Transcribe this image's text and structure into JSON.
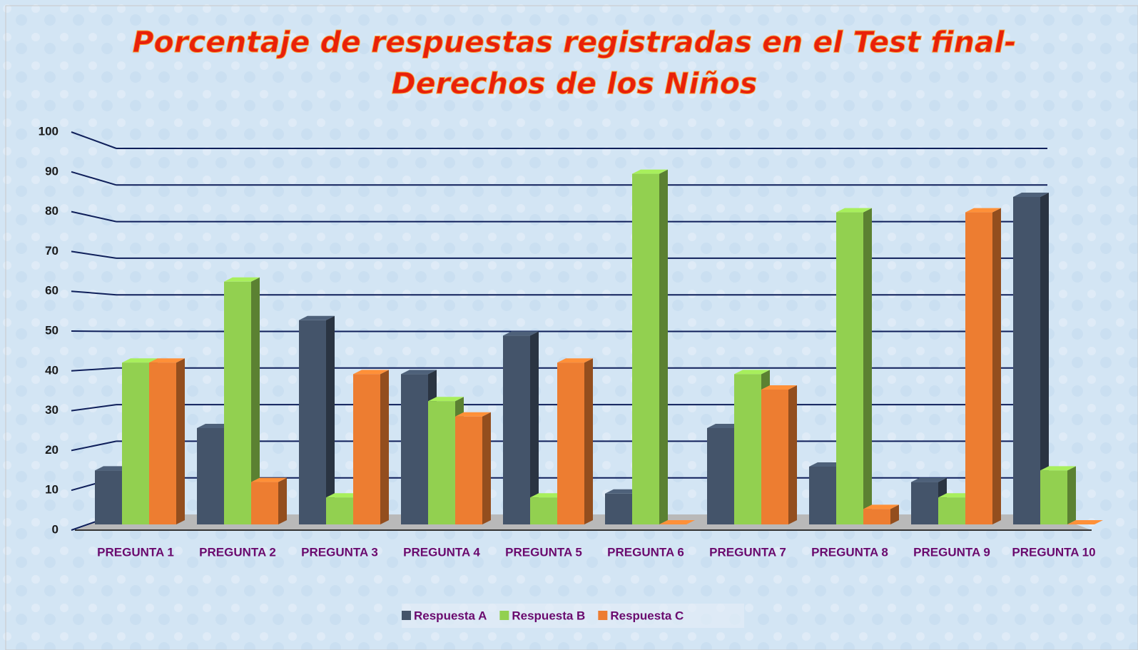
{
  "chart_data": {
    "type": "bar3d",
    "title": [
      "Porcentaje de respuestas registradas en el Test final-",
      "Derechos de los Niños"
    ],
    "categories": [
      "PREGUNTA 1",
      "PREGUNTA 2",
      "PREGUNTA 3",
      "PREGUNTA 4",
      "PREGUNTA 5",
      "PREGUNTA 6",
      "PREGUNTA 7",
      "PREGUNTA 8",
      "PREGUNTA 9",
      "PREGUNTA 10"
    ],
    "series": [
      {
        "name": "Respuesta A",
        "color": "#44546a",
        "values": [
          14,
          25,
          53,
          39,
          49,
          8,
          25,
          15,
          11,
          85
        ]
      },
      {
        "name": "Respuesta B",
        "color": "#92d050",
        "values": [
          42,
          63,
          7,
          32,
          7,
          91,
          39,
          81,
          7,
          14
        ]
      },
      {
        "name": "Respuesta C",
        "color": "#ed7d31",
        "values": [
          42,
          11,
          39,
          28,
          42,
          0,
          35,
          4,
          81,
          0
        ]
      }
    ],
    "ylim": [
      0,
      100
    ],
    "yticks": [
      0,
      10,
      20,
      30,
      40,
      50,
      60,
      70,
      80,
      90,
      100
    ],
    "grid": true,
    "legend": "bottom"
  }
}
